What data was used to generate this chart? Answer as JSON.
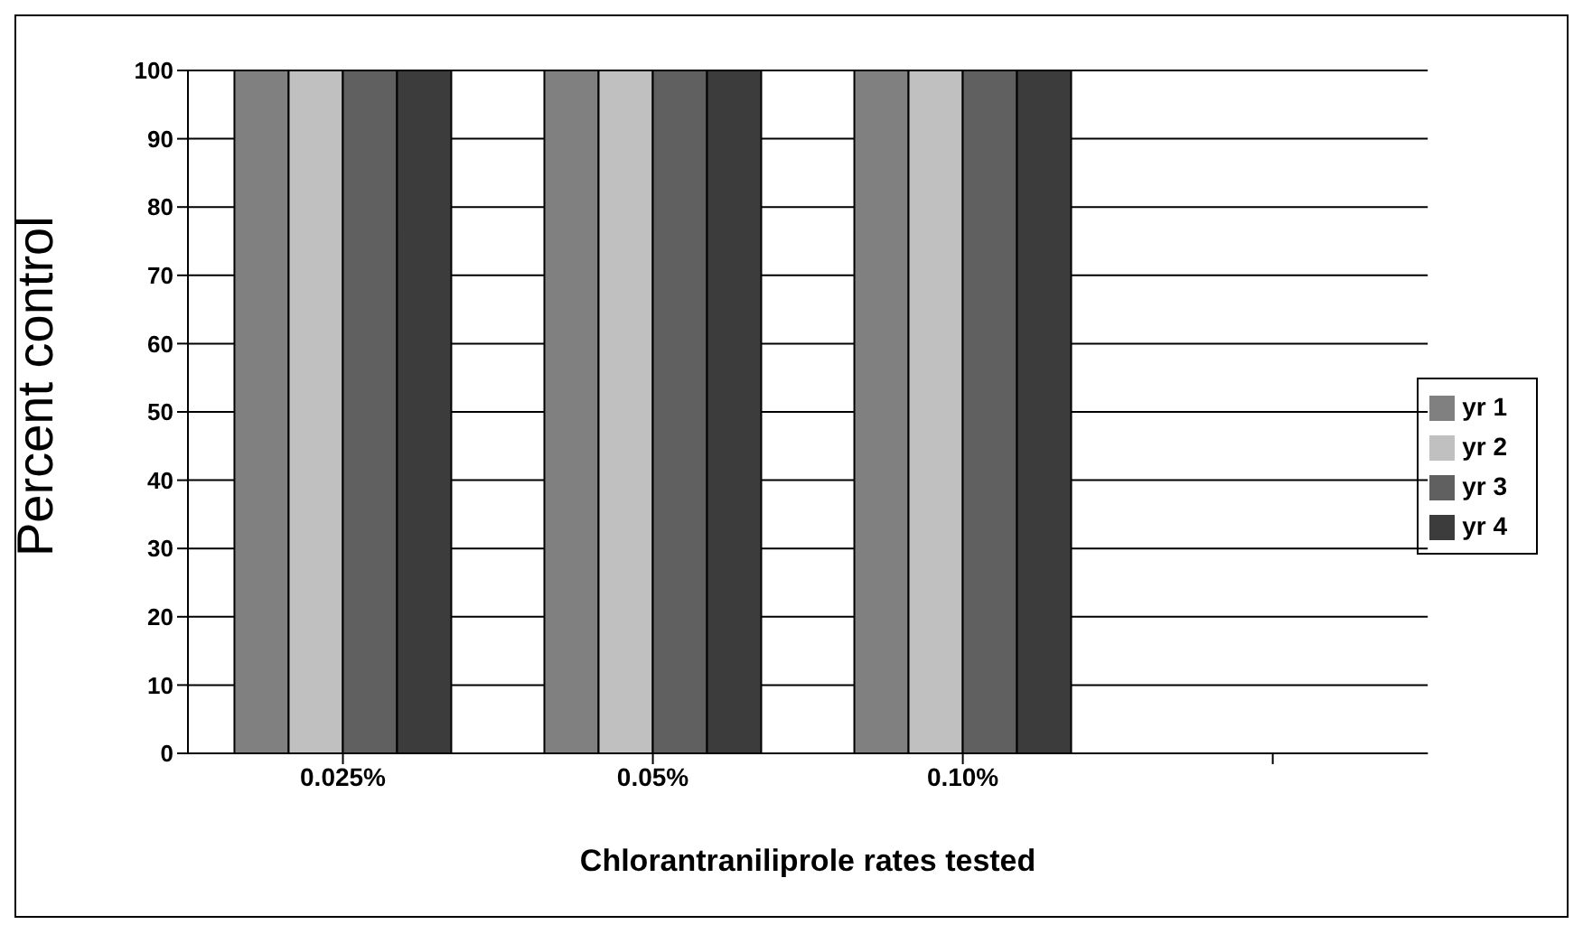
{
  "chart_data": {
    "type": "bar",
    "xlabel": "Chlorantraniliprole rates tested",
    "ylabel": "Percent control",
    "categories": [
      "0.025%",
      "0.05%",
      "0.10%",
      null
    ],
    "series": [
      {
        "name": "yr 1",
        "color": "#808080",
        "values": [
          100,
          100,
          100,
          null
        ]
      },
      {
        "name": "yr 2",
        "color": "#c0c0c0",
        "values": [
          100,
          100,
          100,
          null
        ]
      },
      {
        "name": "yr 3",
        "color": "#606060",
        "values": [
          100,
          100,
          100,
          null
        ]
      },
      {
        "name": "yr 4",
        "color": "#3c3c3c",
        "values": [
          100,
          100,
          100,
          null
        ]
      }
    ],
    "ylim": [
      0,
      100
    ],
    "yticks": [
      0,
      10,
      20,
      30,
      40,
      50,
      60,
      70,
      80,
      90,
      100
    ],
    "grid": "y",
    "legend": "right"
  }
}
